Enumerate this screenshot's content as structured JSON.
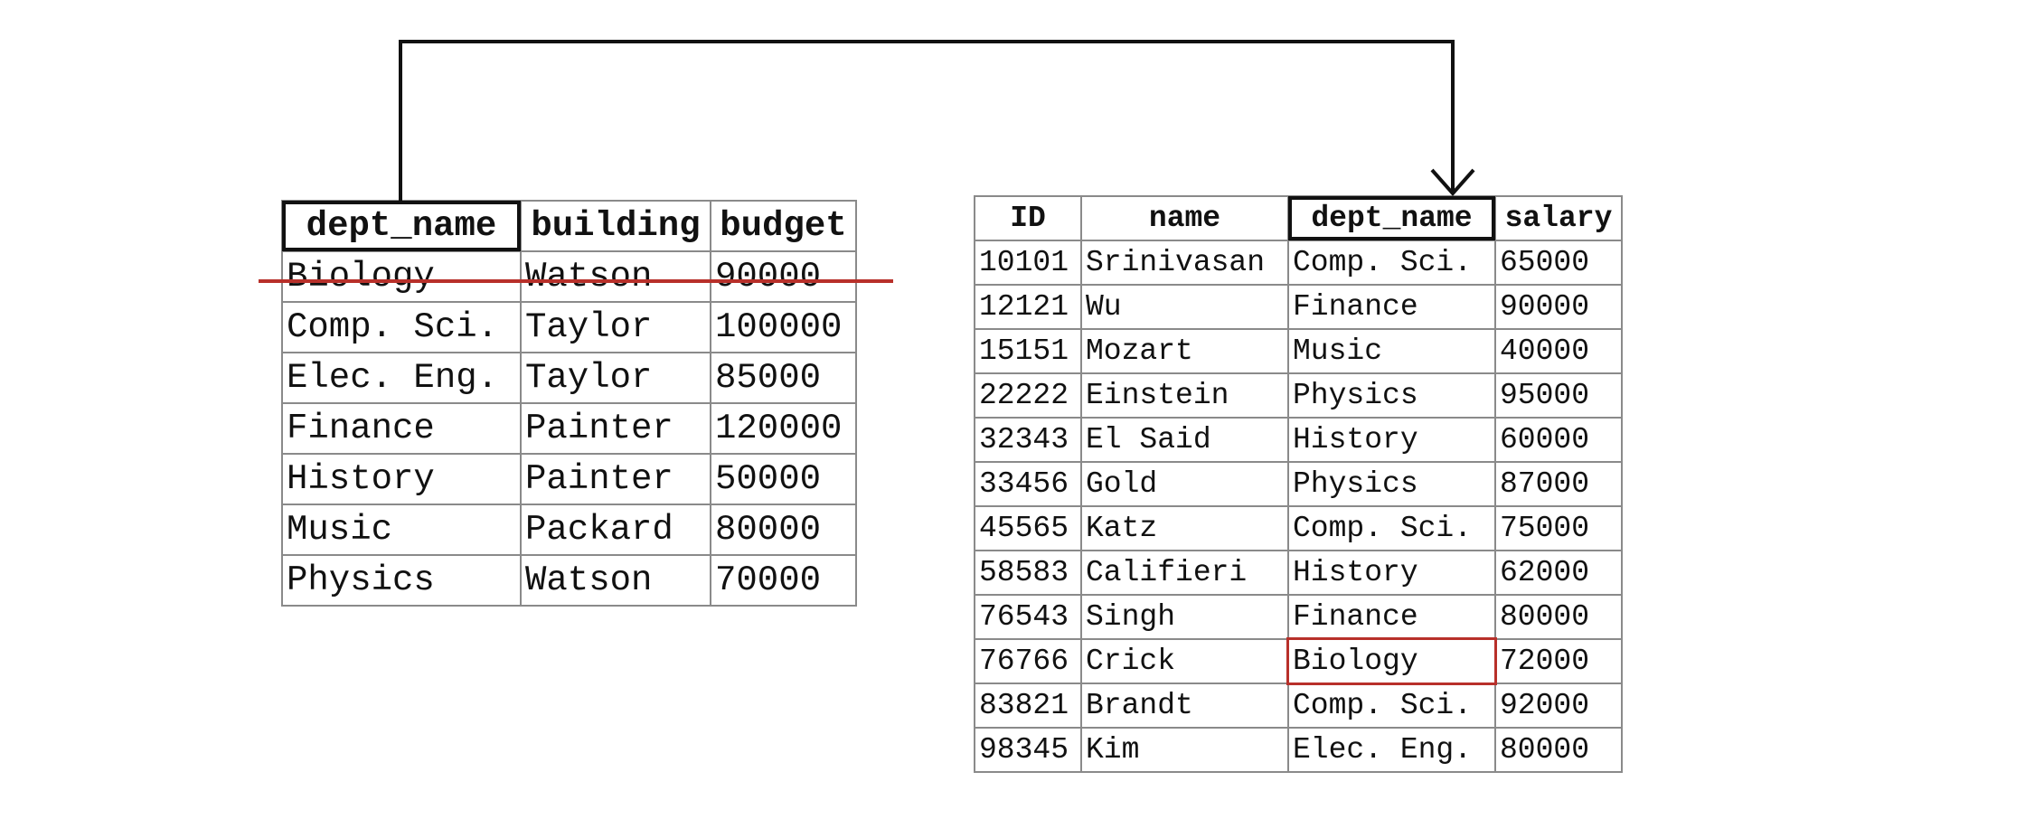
{
  "department": {
    "headers": [
      "dept_name",
      "building",
      "budget"
    ],
    "rows": [
      [
        "Biology",
        "Watson",
        "90000"
      ],
      [
        "Comp. Sci.",
        "Taylor",
        "100000"
      ],
      [
        "Elec. Eng.",
        "Taylor",
        "85000"
      ],
      [
        "Finance",
        "Painter",
        "120000"
      ],
      [
        "History",
        "Painter",
        "50000"
      ],
      [
        "Music",
        "Packard",
        "80000"
      ],
      [
        "Physics",
        "Watson",
        "70000"
      ]
    ],
    "deleted_row_index": 0
  },
  "instructor": {
    "headers": [
      "ID",
      "name",
      "dept_name",
      "salary"
    ],
    "rows": [
      [
        "10101",
        "Srinivasan",
        "Comp. Sci.",
        "65000"
      ],
      [
        "12121",
        "Wu",
        "Finance",
        "90000"
      ],
      [
        "15151",
        "Mozart",
        "Music",
        "40000"
      ],
      [
        "22222",
        "Einstein",
        "Physics",
        "95000"
      ],
      [
        "32343",
        "El Said",
        "History",
        "60000"
      ],
      [
        "33456",
        "Gold",
        "Physics",
        "87000"
      ],
      [
        "45565",
        "Katz",
        "Comp. Sci.",
        "75000"
      ],
      [
        "58583",
        "Califieri",
        "History",
        "62000"
      ],
      [
        "76543",
        "Singh",
        "Finance",
        "80000"
      ],
      [
        "76766",
        "Crick",
        "Biology",
        "72000"
      ],
      [
        "83821",
        "Brandt",
        "Comp. Sci.",
        "92000"
      ],
      [
        "98345",
        "Kim",
        "Elec. Eng.",
        "80000"
      ]
    ],
    "highlighted_row_index": 9
  },
  "colors": {
    "line": "#111111",
    "strike": "#b8302a",
    "grid": "#8a8a8a"
  }
}
